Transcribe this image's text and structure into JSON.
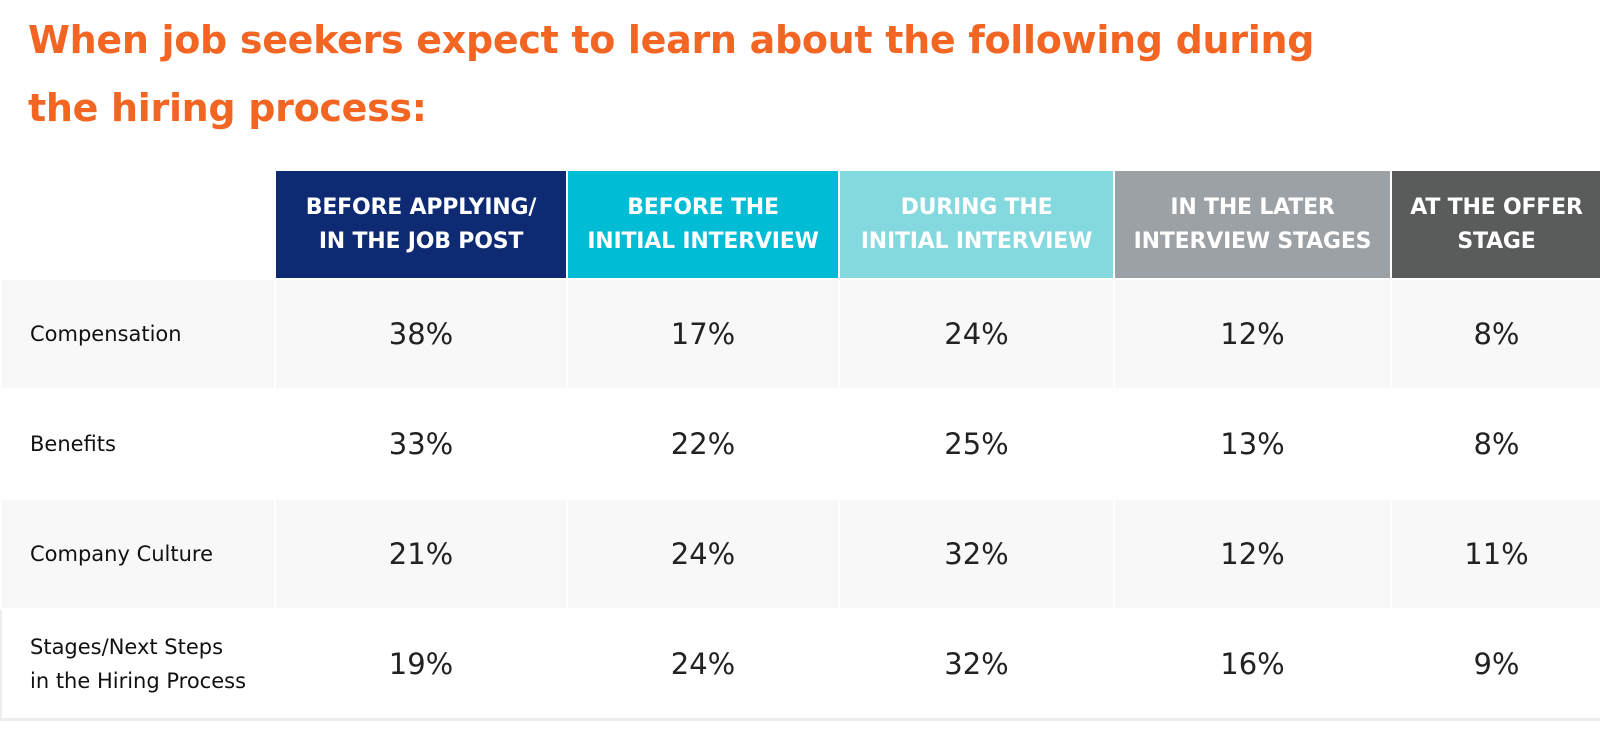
{
  "title": "When job seekers expect to learn about the following during the hiring process:",
  "colors": {
    "title": "#f26522",
    "header_1": "#0d2a72",
    "header_2": "#00bcd4",
    "header_3": "#84d9de",
    "header_4": "#9ca1a6",
    "header_5": "#5a5b5b",
    "row_shade": "#f7f8f7"
  },
  "chart_data": {
    "type": "table",
    "title": "When job seekers expect to learn about the following during the hiring process:",
    "columns": [
      {
        "line1": "BEFORE APPLYING/",
        "line2": "IN THE JOB POST"
      },
      {
        "line1": "BEFORE THE",
        "line2": "INITIAL INTERVIEW"
      },
      {
        "line1": "DURING THE",
        "line2": "INITIAL INTERVIEW"
      },
      {
        "line1": "IN THE LATER",
        "line2": "INTERVIEW STAGES"
      },
      {
        "line1": "AT THE OFFER",
        "line2": "STAGE"
      }
    ],
    "rows": [
      {
        "label_line1": "Compensation",
        "label_line2": "",
        "values": [
          "38%",
          "17%",
          "24%",
          "12%",
          "8%"
        ]
      },
      {
        "label_line1": "Benefits",
        "label_line2": "",
        "values": [
          "33%",
          "22%",
          "25%",
          "13%",
          "8%"
        ]
      },
      {
        "label_line1": "Company Culture",
        "label_line2": "",
        "values": [
          "21%",
          "24%",
          "32%",
          "12%",
          "11%"
        ]
      },
      {
        "label_line1": "Stages/Next Steps",
        "label_line2": "in the Hiring Process",
        "values": [
          "19%",
          "24%",
          "32%",
          "16%",
          "9%"
        ]
      }
    ]
  }
}
